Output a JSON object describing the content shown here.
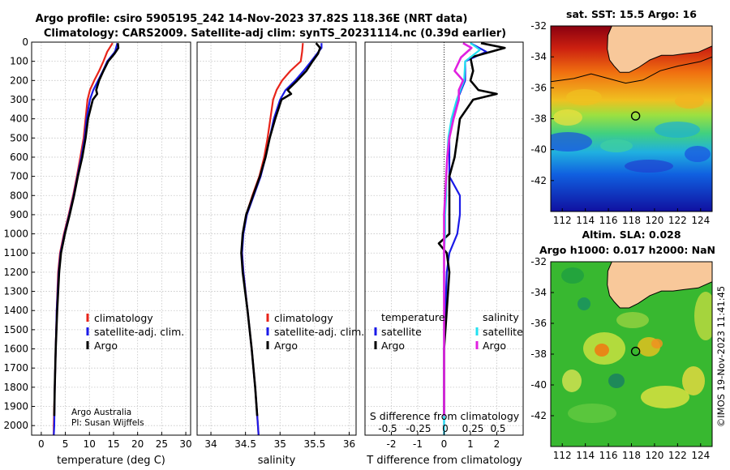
{
  "title_line1": "Argo profile: csiro 5905195_242 14-Nov-2023 37.82S 118.36E (NRT data)",
  "title_line2": "Climatology: CARS2009. Satellite-adj clim: synTS_20231114.nc (0.39d earlier)",
  "credit_line1": "Argo Australia",
  "credit_line2": "PI: Susan Wijffels",
  "imos_stamp": "©IMOS 19-Nov-2023 11:41:45",
  "colors": {
    "climatology": "#e8241a",
    "satellite": "#1a1ae8",
    "argo": "#000000",
    "sal_satellite": "#22e0f0",
    "sal_argo": "#e020e0",
    "land": "#f8c89a"
  },
  "chart_data": [
    {
      "type": "line",
      "panel": "temperature",
      "xlabel": "temperature (deg C)",
      "xlim": [
        -2,
        31
      ],
      "xticks": [
        0,
        5,
        10,
        15,
        20,
        25,
        30
      ],
      "ylim": [
        0,
        2050
      ],
      "yticks": [
        0,
        100,
        200,
        300,
        400,
        500,
        600,
        700,
        800,
        900,
        1000,
        1100,
        1200,
        1300,
        1400,
        1500,
        1600,
        1700,
        1800,
        1900,
        2000
      ],
      "legend": [
        "climatology",
        "satellite-adj. clim.",
        "Argo"
      ],
      "series": [
        {
          "name": "climatology",
          "depth": [
            5,
            50,
            100,
            150,
            200,
            250,
            300,
            400,
            500,
            600,
            700,
            800,
            900,
            1000,
            1100,
            1200,
            1400,
            1600,
            1800,
            2000,
            2050
          ],
          "values": [
            14.8,
            13.7,
            12.9,
            12.0,
            11.0,
            10.1,
            9.6,
            9.2,
            8.8,
            8.1,
            7.4,
            6.6,
            5.7,
            4.7,
            3.9,
            3.5,
            3.2,
            3.0,
            2.8,
            2.6,
            2.6
          ]
        },
        {
          "name": "satellite-adj. clim.",
          "depth": [
            5,
            50,
            100,
            150,
            200,
            250,
            300,
            400,
            500,
            600,
            700,
            800,
            900,
            1000,
            1100,
            1200,
            1400,
            1600,
            1800,
            2000,
            2050
          ],
          "values": [
            15.8,
            15.3,
            13.7,
            12.8,
            11.8,
            10.8,
            10.1,
            9.4,
            9.0,
            8.3,
            7.5,
            6.7,
            5.8,
            4.8,
            4.0,
            3.6,
            3.2,
            3.0,
            2.8,
            2.7,
            2.6
          ]
        },
        {
          "name": "Argo",
          "depth": [
            5,
            30,
            60,
            100,
            150,
            200,
            250,
            270,
            300,
            400,
            500,
            600,
            700,
            800,
            900,
            1000,
            1100,
            1200,
            1400,
            1600,
            1800,
            1950
          ],
          "values": [
            15.9,
            16.0,
            15.2,
            13.9,
            12.9,
            12.0,
            11.4,
            11.6,
            10.7,
            9.7,
            9.2,
            8.5,
            7.6,
            6.8,
            5.9,
            4.9,
            4.1,
            3.7,
            3.3,
            3.0,
            2.8,
            2.7
          ]
        }
      ]
    },
    {
      "type": "line",
      "panel": "salinity",
      "xlabel": "salinity",
      "xlim": [
        33.8,
        36.1
      ],
      "xticks": [
        34,
        34.5,
        35,
        35.5,
        36
      ],
      "xticklabels": [
        "34",
        "34.5",
        "35",
        "35.5",
        "36"
      ],
      "ylim": [
        0,
        2050
      ],
      "legend": [
        "climatology",
        "satellite-adj. clim.",
        "Argo"
      ],
      "series": [
        {
          "name": "climatology",
          "depth": [
            5,
            50,
            100,
            150,
            200,
            250,
            300,
            400,
            500,
            600,
            700,
            800,
            900,
            1000,
            1100,
            1200,
            1400,
            1600,
            1800,
            2000,
            2050
          ],
          "values": [
            35.33,
            35.32,
            35.3,
            35.15,
            35.03,
            34.95,
            34.9,
            34.86,
            34.82,
            34.77,
            34.7,
            34.6,
            34.51,
            34.46,
            34.45,
            34.47,
            34.53,
            34.59,
            34.64,
            34.68,
            34.69
          ]
        },
        {
          "name": "satellite-adj. clim.",
          "depth": [
            5,
            30,
            100,
            150,
            200,
            250,
            300,
            400,
            500,
            600,
            700,
            800,
            900,
            1000,
            1100,
            1200,
            1400,
            1600,
            1800,
            2000,
            2050
          ],
          "values": [
            35.6,
            35.6,
            35.45,
            35.34,
            35.22,
            35.08,
            35.0,
            34.91,
            34.85,
            34.79,
            34.72,
            34.62,
            34.52,
            34.47,
            34.45,
            34.47,
            34.53,
            34.59,
            34.64,
            34.68,
            34.69
          ]
        },
        {
          "name": "Argo",
          "depth": [
            5,
            30,
            60,
            100,
            150,
            200,
            250,
            270,
            300,
            400,
            500,
            600,
            700,
            800,
            900,
            1000,
            1100,
            1200,
            1400,
            1600,
            1800,
            1950
          ],
          "values": [
            35.52,
            35.58,
            35.55,
            35.47,
            35.38,
            35.25,
            35.11,
            35.16,
            35.02,
            34.93,
            34.85,
            34.79,
            34.71,
            34.61,
            34.51,
            34.46,
            34.44,
            34.46,
            34.53,
            34.59,
            34.64,
            34.67
          ]
        }
      ]
    },
    {
      "type": "line",
      "panel": "difference from climatology",
      "xlabel": "T difference from climatology",
      "xlabel_top": "S difference from climatology",
      "xlim": [
        -3,
        3
      ],
      "xticks": [
        -2,
        -1,
        0,
        1,
        2
      ],
      "top_ticks": [
        "-0.5",
        "-0.25",
        "0",
        "0.25",
        "0.5"
      ],
      "ylim": [
        0,
        2050
      ],
      "legend_titles": [
        "temperature",
        "salinity"
      ],
      "legend_temperature": [
        "satellite",
        "Argo"
      ],
      "legend_salinity": [
        "satellite",
        "Argo"
      ],
      "series": [
        {
          "name": "T satellite",
          "depth": [
            5,
            50,
            100,
            200,
            300,
            400,
            500,
            600,
            700,
            800,
            900,
            1000,
            1100,
            1200,
            1400,
            1600,
            1800,
            2000,
            2050
          ],
          "values": [
            1.0,
            1.6,
            0.8,
            0.8,
            0.5,
            0.3,
            0.2,
            0.2,
            0.2,
            0.6,
            0.6,
            0.5,
            0.2,
            0.1,
            0.05,
            0.0,
            0.0,
            0.0,
            0.0
          ]
        },
        {
          "name": "T Argo",
          "depth": [
            5,
            30,
            80,
            150,
            200,
            250,
            270,
            300,
            400,
            500,
            600,
            700,
            800,
            900,
            1000,
            1050,
            1100,
            1200,
            1400,
            1600,
            1800,
            1950
          ],
          "values": [
            1.4,
            2.3,
            1.0,
            1.1,
            1.0,
            1.3,
            2.0,
            1.1,
            0.6,
            0.5,
            0.4,
            0.2,
            0.2,
            0.2,
            0.2,
            -0.2,
            0.1,
            0.2,
            0.1,
            0.0,
            0.0,
            0.0
          ]
        },
        {
          "name": "S satellite",
          "depth": [
            5,
            40,
            100,
            200,
            300,
            400,
            500,
            600,
            700,
            800,
            900,
            1000,
            1100,
            1200,
            1400,
            1600,
            1800,
            2000,
            2050
          ],
          "values": [
            0.25,
            0.34,
            0.2,
            0.19,
            0.12,
            0.07,
            0.04,
            0.03,
            0.02,
            0.02,
            0.01,
            0.01,
            0.0,
            0.0,
            0.0,
            0.0,
            0.0,
            0.0,
            0.0
          ]
        },
        {
          "name": "S Argo",
          "depth": [
            5,
            30,
            80,
            150,
            200,
            250,
            300,
            400,
            500,
            600,
            700,
            800,
            900,
            1000,
            1100,
            1200,
            1400,
            1600,
            1800,
            1950
          ],
          "values": [
            0.18,
            0.26,
            0.16,
            0.1,
            0.18,
            0.14,
            0.14,
            0.09,
            0.05,
            0.03,
            0.02,
            0.01,
            0.0,
            0.0,
            0.0,
            0.0,
            0.0,
            0.0,
            0.0,
            0.0
          ]
        }
      ]
    },
    {
      "type": "heatmap",
      "panel": "map-sst",
      "title": "sat. SST: 15.5 Argo: 16",
      "xlim": [
        111,
        125
      ],
      "ylim": [
        -44,
        -32
      ],
      "xticks": [
        112,
        114,
        116,
        118,
        120,
        122,
        124
      ],
      "yticks": [
        -32,
        -34,
        -36,
        -38,
        -40,
        -42
      ],
      "marker": {
        "lon": 118.36,
        "lat": -37.82
      }
    },
    {
      "type": "heatmap",
      "panel": "map-sla",
      "title_line1": "Altim. SLA: 0.028",
      "title_line2": "Argo h1000: 0.017 h2000: NaN",
      "xlim": [
        111,
        125
      ],
      "ylim": [
        -44,
        -32
      ],
      "xticks": [
        112,
        114,
        116,
        118,
        120,
        122,
        124
      ],
      "yticks": [
        -32,
        -34,
        -36,
        -38,
        -40,
        -42
      ],
      "marker": {
        "lon": 118.36,
        "lat": -37.82
      }
    }
  ]
}
